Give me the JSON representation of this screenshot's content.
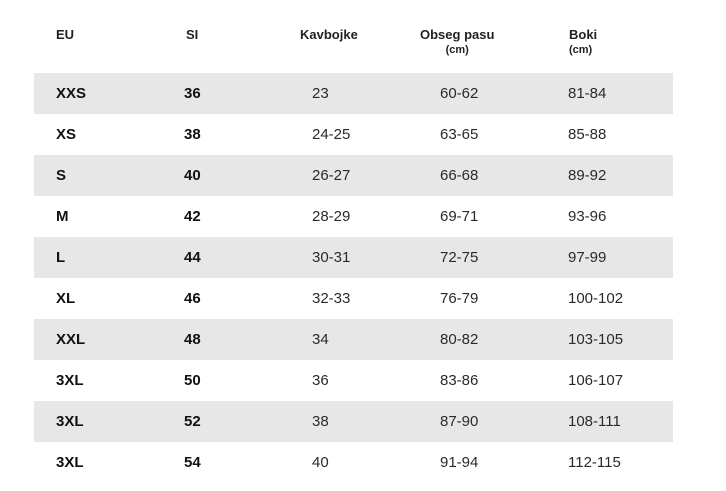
{
  "headers": {
    "eu": "EU",
    "si": "SI",
    "kavbojke": "Kavbojke",
    "obseg_pasu": "Obseg pasu",
    "obseg_pasu_unit": "(cm)",
    "boki": "Boki",
    "boki_unit": "(cm)"
  },
  "rows": [
    {
      "eu": "XXS",
      "si": "36",
      "kavbojke": "23",
      "obseg_pasu": "60-62",
      "boki": "81-84"
    },
    {
      "eu": "XS",
      "si": "38",
      "kavbojke": "24-25",
      "obseg_pasu": "63-65",
      "boki": "85-88"
    },
    {
      "eu": "S",
      "si": "40",
      "kavbojke": "26-27",
      "obseg_pasu": "66-68",
      "boki": "89-92"
    },
    {
      "eu": "M",
      "si": "42",
      "kavbojke": "28-29",
      "obseg_pasu": "69-71",
      "boki": "93-96"
    },
    {
      "eu": "L",
      "si": "44",
      "kavbojke": "30-31",
      "obseg_pasu": "72-75",
      "boki": "97-99"
    },
    {
      "eu": "XL",
      "si": "46",
      "kavbojke": "32-33",
      "obseg_pasu": "76-79",
      "boki": "100-102"
    },
    {
      "eu": "XXL",
      "si": "48",
      "kavbojke": "34",
      "obseg_pasu": "80-82",
      "boki": "103-105"
    },
    {
      "eu": "3XL",
      "si": "50",
      "kavbojke": "36",
      "obseg_pasu": "83-86",
      "boki": "106-107"
    },
    {
      "eu": "3XL",
      "si": "52",
      "kavbojke": "38",
      "obseg_pasu": "87-90",
      "boki": "108-111"
    },
    {
      "eu": "3XL",
      "si": "54",
      "kavbojke": "40",
      "obseg_pasu": "91-94",
      "boki": "112-115"
    }
  ],
  "colors": {
    "stripe": "#e7e7e8",
    "background": "#ffffff",
    "text": "#1a1a1a"
  }
}
